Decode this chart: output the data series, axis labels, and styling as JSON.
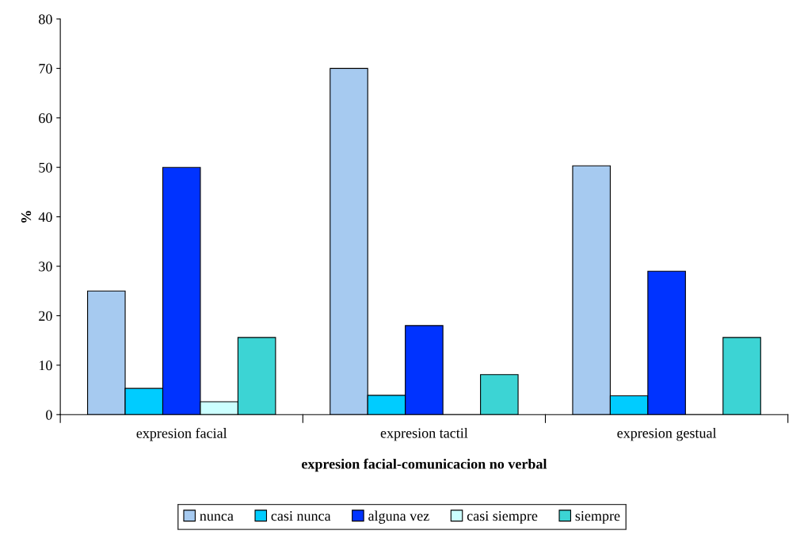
{
  "chart_data": {
    "type": "bar",
    "xlabel": "expresion facial-comunicacion no verbal",
    "ylabel": "%",
    "categories": [
      "expresion facial",
      "expresion tactil",
      "expresion gestual"
    ],
    "series": [
      {
        "name": "nunca",
        "color": "#a6caf0",
        "values": [
          25,
          70,
          50.3
        ]
      },
      {
        "name": "casi nunca",
        "color": "#00ccff",
        "values": [
          5.3,
          3.9,
          3.8
        ]
      },
      {
        "name": "alguna vez",
        "color": "#0033ff",
        "values": [
          50,
          18,
          29
        ]
      },
      {
        "name": "casi siempre",
        "color": "#ccffff",
        "values": [
          2.6,
          0,
          0
        ]
      },
      {
        "name": "siempre",
        "color": "#3cd4d4",
        "values": [
          15.6,
          8.1,
          15.6
        ]
      }
    ],
    "ylim": [
      0,
      80
    ],
    "yticks": [
      0,
      10,
      20,
      30,
      40,
      50,
      60,
      70,
      80
    ],
    "grid": false,
    "legend": "bottom"
  }
}
